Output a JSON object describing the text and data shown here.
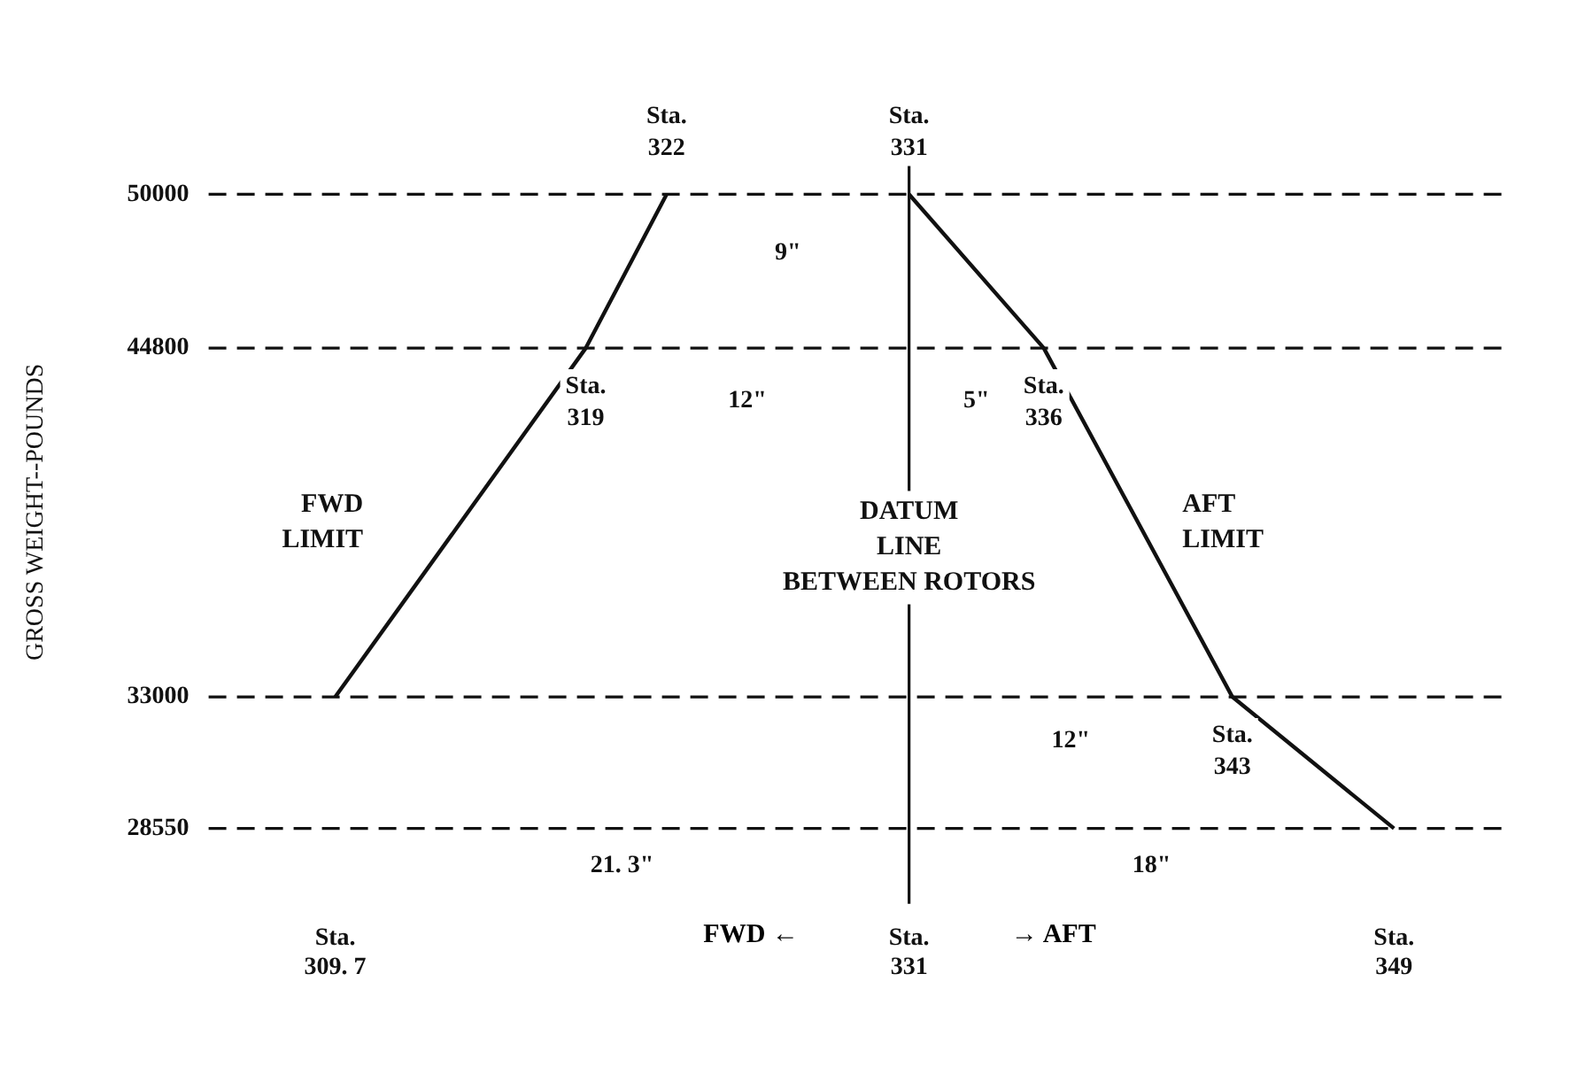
{
  "chart_data": {
    "type": "line",
    "ylabel": "GROSS WEIGHT--POUNDS",
    "xlim": [
      305,
      353
    ],
    "xticks": [
      {
        "value": 309.7,
        "label": "Sta. 309. 7"
      },
      {
        "value": 331,
        "label": "Sta. 331"
      },
      {
        "value": 349,
        "label": "Sta. 349"
      }
    ],
    "ylim": [
      26000,
      52500
    ],
    "yticks": [
      28550,
      33000,
      44800,
      50000
    ],
    "grid": false,
    "legend": false,
    "marker": "none",
    "line_style": "solid",
    "series": [
      {
        "name": "FWD LIMIT",
        "color": "#111111",
        "x": [
          309.7,
          319,
          322
        ],
        "values": [
          33000,
          44800,
          50000
        ]
      },
      {
        "name": "AFT LIMIT",
        "color": "#111111",
        "x": [
          331,
          336,
          343,
          349
        ],
        "values": [
          50000,
          44800,
          33000,
          28550
        ]
      }
    ],
    "ref_lines": [
      {
        "axis": "x",
        "value": 331,
        "label": "DATUM LINE BETWEEN ROTORS",
        "color": "#111111",
        "line_style": "solid"
      },
      {
        "axis": "y",
        "value": 50000,
        "color": "#111111",
        "line_style": "dashed"
      },
      {
        "axis": "y",
        "value": 44800,
        "color": "#111111",
        "line_style": "dashed"
      },
      {
        "axis": "y",
        "value": 33000,
        "color": "#111111",
        "line_style": "dashed"
      },
      {
        "axis": "y",
        "value": 28550,
        "color": "#111111",
        "line_style": "dashed"
      }
    ],
    "annotations": [
      {
        "text": "Sta. 322",
        "x": 322,
        "y": 50000
      },
      {
        "text": "Sta. 331",
        "x": 331,
        "y": 50000
      },
      {
        "text": "Sta. 319",
        "x": 319,
        "y": 44800
      },
      {
        "text": "Sta. 336",
        "x": 336,
        "y": 44800
      },
      {
        "text": "Sta. 343",
        "x": 343,
        "y": 33000
      },
      {
        "text": "9\"",
        "x": 326.5,
        "y": 48000
      },
      {
        "text": "12\"",
        "x": 325,
        "y": 43000
      },
      {
        "text": "5\"",
        "x": 333.5,
        "y": 43000
      },
      {
        "text": "12\"",
        "x": 337,
        "y": 31500
      },
      {
        "text": "21. 3\"",
        "x": 320.35,
        "y": 27300
      },
      {
        "text": "18\"",
        "x": 340,
        "y": 27300
      },
      "FWD ←",
      "→ AFT"
    ]
  }
}
